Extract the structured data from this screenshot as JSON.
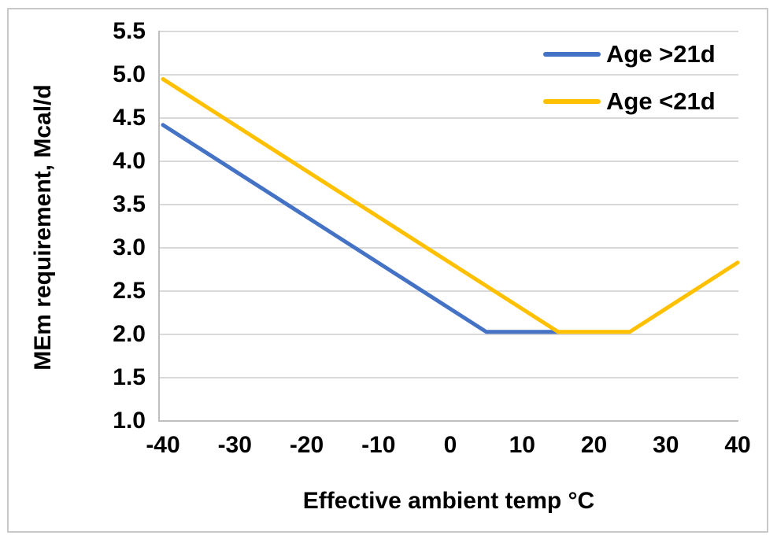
{
  "chart_data": {
    "type": "line",
    "title": "",
    "xlabel": "Effective ambient temp °C",
    "ylabel": "MEm requirement, Mcal/d",
    "xlim": [
      -40,
      40
    ],
    "ylim": [
      1.0,
      5.5
    ],
    "grid": "horizontal-only",
    "legend_position": "top-right-inside",
    "x_ticks": [
      {
        "value": -40,
        "label": "-40"
      },
      {
        "value": -30,
        "label": "-30"
      },
      {
        "value": -20,
        "label": "-20"
      },
      {
        "value": -10,
        "label": "-10"
      },
      {
        "value": 0,
        "label": "0"
      },
      {
        "value": 10,
        "label": "10"
      },
      {
        "value": 20,
        "label": "20"
      },
      {
        "value": 30,
        "label": "30"
      },
      {
        "value": 40,
        "label": "40"
      }
    ],
    "y_ticks": [
      {
        "value": 1.0,
        "label": "1.0"
      },
      {
        "value": 1.5,
        "label": "1.5"
      },
      {
        "value": 2.0,
        "label": "2.0"
      },
      {
        "value": 2.5,
        "label": "2.5"
      },
      {
        "value": 3.0,
        "label": "3.0"
      },
      {
        "value": 3.5,
        "label": "3.5"
      },
      {
        "value": 4.0,
        "label": "4.0"
      },
      {
        "value": 4.5,
        "label": "4.5"
      },
      {
        "value": 5.0,
        "label": "5.0"
      },
      {
        "value": 5.5,
        "label": "5.5"
      }
    ],
    "series": [
      {
        "name": "Age >21d",
        "color": "#4472C4",
        "points": [
          [
            -40,
            4.42
          ],
          [
            5,
            2.03
          ],
          [
            15,
            2.03
          ]
        ]
      },
      {
        "name": "Age <21d",
        "color": "#FFC000",
        "points": [
          [
            -40,
            4.95
          ],
          [
            15,
            2.03
          ],
          [
            25,
            2.03
          ],
          [
            40,
            2.83
          ]
        ]
      }
    ]
  },
  "colors": {
    "gridline": "#D9D9D9",
    "axis_line": "#BFBFBF",
    "chart_border": "#C9C9C9",
    "text": "#000000",
    "background": "#FFFFFF"
  }
}
